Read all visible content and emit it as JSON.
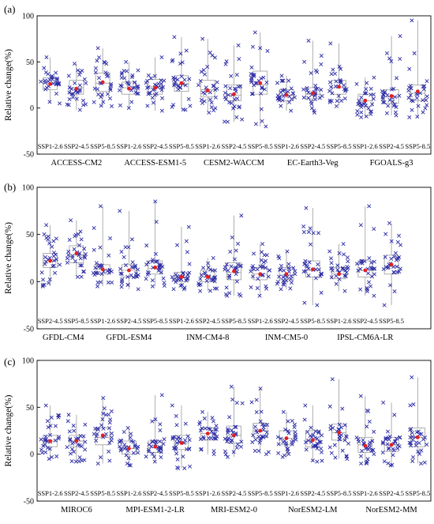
{
  "figure": {
    "panel_labels": [
      "(a)",
      "(b)",
      "(c)"
    ],
    "ylabel": "Relative change(%)",
    "colors": {
      "marker": "#2a2aa6",
      "mean": "#e02020",
      "box": "#9a9a9a"
    }
  },
  "chart_data": [
    {
      "type": "box",
      "panel": "(a)",
      "ylabel": "Relative change(%)",
      "ylim": [
        -50,
        100
      ],
      "yticks": [
        -50,
        0,
        50,
        100
      ],
      "grid": false,
      "models": [
        {
          "name": "ACCESS-CM2",
          "boxes": [
            {
              "scenario": "SSP1-2.6",
              "q1": 20,
              "median": 27,
              "q3": 33,
              "min": 5,
              "max": 55,
              "mean": 26
            },
            {
              "scenario": "SSP2-4.5",
              "q1": 15,
              "median": 22,
              "q3": 30,
              "min": -2,
              "max": 48,
              "mean": 21
            },
            {
              "scenario": "SSP5-8.5",
              "q1": 18,
              "median": 27,
              "q3": 38,
              "min": 2,
              "max": 65,
              "mean": 28
            }
          ]
        },
        {
          "name": "ACCESS-ESM1-5",
          "boxes": [
            {
              "scenario": "SSP1-2.6",
              "q1": 15,
              "median": 22,
              "q3": 28,
              "min": 0,
              "max": 50,
              "mean": 21
            },
            {
              "scenario": "SSP2-4.5",
              "q1": 15,
              "median": 23,
              "q3": 31,
              "min": -3,
              "max": 55,
              "mean": 22
            },
            {
              "scenario": "SSP5-8.5",
              "q1": 18,
              "median": 26,
              "q3": 35,
              "min": -2,
              "max": 77,
              "mean": 27
            }
          ]
        },
        {
          "name": "CESM2-WACCM",
          "boxes": [
            {
              "scenario": "SSP1-2.6",
              "q1": 12,
              "median": 20,
              "q3": 30,
              "min": -5,
              "max": 75,
              "mean": 19
            },
            {
              "scenario": "SSP2-4.5",
              "q1": 8,
              "median": 14,
              "q3": 25,
              "min": -15,
              "max": 68,
              "mean": 15
            },
            {
              "scenario": "SSP5-8.5",
              "q1": 15,
              "median": 25,
              "q3": 40,
              "min": -20,
              "max": 82,
              "mean": 27
            }
          ]
        },
        {
          "name": "EC-Earth3-Veg",
          "boxes": [
            {
              "scenario": "SSP1-2.6",
              "q1": 8,
              "median": 14,
              "q3": 20,
              "min": -3,
              "max": 35,
              "mean": 14
            },
            {
              "scenario": "SSP2-4.5",
              "q1": 10,
              "median": 15,
              "q3": 22,
              "min": -5,
              "max": 73,
              "mean": 16
            },
            {
              "scenario": "SSP5-8.5",
              "q1": 15,
              "median": 22,
              "q3": 30,
              "min": 2,
              "max": 70,
              "mean": 23
            }
          ]
        },
        {
          "name": "FGOALS-g3",
          "boxes": [
            {
              "scenario": "SSP1-2.6",
              "q1": 2,
              "median": 8,
              "q3": 15,
              "min": -10,
              "max": 33,
              "mean": 8
            },
            {
              "scenario": "SSP2-4.5",
              "q1": 5,
              "median": 12,
              "q3": 20,
              "min": -8,
              "max": 78,
              "mean": 13
            },
            {
              "scenario": "SSP5-8.5",
              "q1": 8,
              "median": 16,
              "q3": 25,
              "min": -10,
              "max": 95,
              "mean": 18
            }
          ]
        }
      ]
    },
    {
      "type": "box",
      "panel": "(b)",
      "ylabel": "Relative change(%)",
      "ylim": [
        -50,
        100
      ],
      "yticks": [
        -50,
        0,
        50,
        100
      ],
      "grid": false,
      "models": [
        {
          "name": "GFDL-CM4",
          "boxes": [
            {
              "scenario": "SSP2-4.5",
              "q1": 15,
              "median": 22,
              "q3": 30,
              "min": -5,
              "max": 60,
              "mean": 22
            },
            {
              "scenario": "SSP5-8.5",
              "q1": 20,
              "median": 28,
              "q3": 38,
              "min": 5,
              "max": 65,
              "mean": 30
            }
          ]
        },
        {
          "name": "GFDL-ESM4",
          "boxes": [
            {
              "scenario": "SSP1-2.6",
              "q1": 8,
              "median": 13,
              "q3": 18,
              "min": -5,
              "max": 80,
              "mean": 13
            },
            {
              "scenario": "SSP2-4.5",
              "q1": 5,
              "median": 12,
              "q3": 18,
              "min": -8,
              "max": 75,
              "mean": 12
            },
            {
              "scenario": "SSP5-8.5",
              "q1": 8,
              "median": 14,
              "q3": 22,
              "min": -5,
              "max": 85,
              "mean": 15
            }
          ]
        },
        {
          "name": "INM-CM4-8",
          "boxes": [
            {
              "scenario": "SSP1-2.6",
              "q1": 0,
              "median": 5,
              "q3": 10,
              "min": -8,
              "max": 58,
              "mean": 5
            },
            {
              "scenario": "SSP2-4.5",
              "q1": 0,
              "median": 5,
              "q3": 12,
              "min": -10,
              "max": 25,
              "mean": 5
            },
            {
              "scenario": "SSP5-8.5",
              "q1": 2,
              "median": 10,
              "q3": 20,
              "min": -15,
              "max": 70,
              "mean": 11
            }
          ]
        },
        {
          "name": "INM-CM5-0",
          "boxes": [
            {
              "scenario": "SSP1-2.6",
              "q1": 2,
              "median": 8,
              "q3": 15,
              "min": -15,
              "max": 40,
              "mean": 8
            },
            {
              "scenario": "SSP2-4.5",
              "q1": 2,
              "median": 7,
              "q3": 15,
              "min": -8,
              "max": 32,
              "mean": 8
            },
            {
              "scenario": "SSP5-8.5",
              "q1": 5,
              "median": 12,
              "q3": 22,
              "min": -25,
              "max": 78,
              "mean": 13
            }
          ]
        },
        {
          "name": "IPSL-CM6A-LR",
          "boxes": [
            {
              "scenario": "SSP1-2.6",
              "q1": 3,
              "median": 8,
              "q3": 15,
              "min": -10,
              "max": 40,
              "mean": 8
            },
            {
              "scenario": "SSP2-4.5",
              "q1": 5,
              "median": 12,
              "q3": 22,
              "min": -15,
              "max": 80,
              "mean": 12
            },
            {
              "scenario": "SSP5-8.5",
              "q1": 8,
              "median": 16,
              "q3": 28,
              "min": -25,
              "max": 62,
              "mean": 18
            }
          ]
        }
      ]
    },
    {
      "type": "box",
      "panel": "(c)",
      "ylabel": "Relative change(%)",
      "ylim": [
        -50,
        100
      ],
      "yticks": [
        -50,
        0,
        50,
        100
      ],
      "grid": false,
      "models": [
        {
          "name": "MIROC6",
          "boxes": [
            {
              "scenario": "SSP1-2.6",
              "q1": 8,
              "median": 14,
              "q3": 20,
              "min": -5,
              "max": 52,
              "mean": 14
            },
            {
              "scenario": "SSP2-4.5",
              "q1": 8,
              "median": 14,
              "q3": 20,
              "min": -8,
              "max": 42,
              "mean": 14
            },
            {
              "scenario": "SSP5-8.5",
              "q1": 10,
              "median": 18,
              "q3": 28,
              "min": -10,
              "max": 60,
              "mean": 20
            }
          ]
        },
        {
          "name": "MPI-ESM1-2-LR",
          "boxes": [
            {
              "scenario": "SSP1-2.6",
              "q1": 0,
              "median": 6,
              "q3": 14,
              "min": -12,
              "max": 28,
              "mean": 6
            },
            {
              "scenario": "SSP2-4.5",
              "q1": 2,
              "median": 7,
              "q3": 14,
              "min": -8,
              "max": 63,
              "mean": 8
            },
            {
              "scenario": "SSP5-8.5",
              "q1": 5,
              "median": 12,
              "q3": 20,
              "min": -15,
              "max": 52,
              "mean": 12
            }
          ]
        },
        {
          "name": "MRI-ESM2-0",
          "boxes": [
            {
              "scenario": "SSP1-2.6",
              "q1": 15,
              "median": 22,
              "q3": 28,
              "min": 0,
              "max": 45,
              "mean": 22
            },
            {
              "scenario": "SSP2-4.5",
              "q1": 12,
              "median": 20,
              "q3": 30,
              "min": -3,
              "max": 72,
              "mean": 20
            },
            {
              "scenario": "SSP5-8.5",
              "q1": 18,
              "median": 25,
              "q3": 33,
              "min": 0,
              "max": 70,
              "mean": 25
            }
          ]
        },
        {
          "name": "NorESM2-LM",
          "boxes": [
            {
              "scenario": "SSP1-2.6",
              "q1": 10,
              "median": 17,
              "q3": 25,
              "min": -3,
              "max": 45,
              "mean": 17
            },
            {
              "scenario": "SSP2-4.5",
              "q1": 8,
              "median": 15,
              "q3": 25,
              "min": -8,
              "max": 52,
              "mean": 15
            },
            {
              "scenario": "SSP5-8.5",
              "q1": 15,
              "median": 23,
              "q3": 32,
              "min": -5,
              "max": 80,
              "mean": 23
            }
          ]
        },
        {
          "name": "NorESM2-MM",
          "boxes": [
            {
              "scenario": "SSP1-2.6",
              "q1": 2,
              "median": 10,
              "q3": 18,
              "min": -10,
              "max": 62,
              "mean": 9
            },
            {
              "scenario": "SSP2-4.5",
              "q1": 3,
              "median": 10,
              "q3": 18,
              "min": -12,
              "max": 55,
              "mean": 10
            },
            {
              "scenario": "SSP5-8.5",
              "q1": 8,
              "median": 18,
              "q3": 28,
              "min": -10,
              "max": 82,
              "mean": 18
            }
          ]
        }
      ]
    }
  ]
}
